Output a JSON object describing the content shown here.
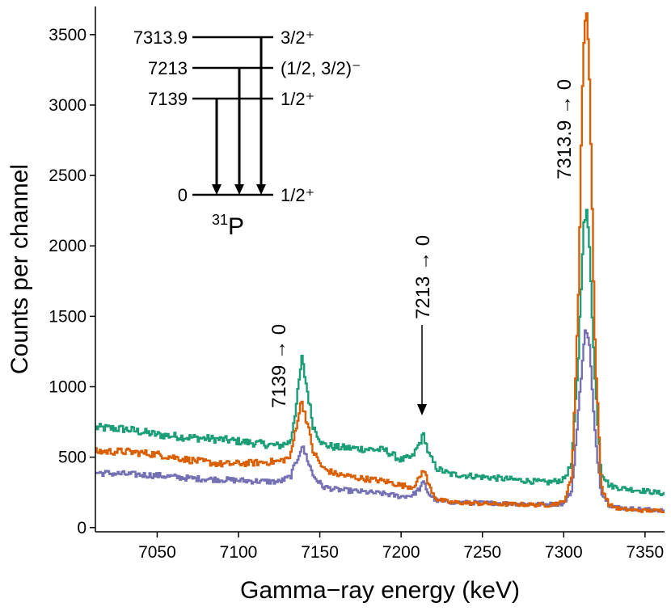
{
  "chart_data": {
    "type": "line",
    "title": "",
    "xlabel": "Gamma−ray energy (keV)",
    "ylabel": "Counts per channel",
    "xlim": [
      7012,
      7362
    ],
    "ylim": [
      -30,
      3700
    ],
    "xticks": [
      7050,
      7100,
      7150,
      7200,
      7250,
      7300,
      7350
    ],
    "yticks": [
      0,
      500,
      1000,
      1500,
      2000,
      2500,
      3000,
      3500
    ],
    "grid": false,
    "legend": "none",
    "series": [
      {
        "color": "#1b9e77",
        "x": [
          7012,
          7030,
          7050,
          7070,
          7090,
          7110,
          7125,
          7132,
          7136,
          7139,
          7142,
          7146,
          7152,
          7160,
          7175,
          7190,
          7200,
          7207,
          7211,
          7214,
          7217,
          7222,
          7230,
          7250,
          7270,
          7290,
          7300,
          7305,
          7309,
          7312,
          7314,
          7316,
          7319,
          7323,
          7328,
          7335,
          7350,
          7362
        ],
        "y": [
          710,
          700,
          660,
          640,
          625,
          600,
          580,
          610,
          900,
          1200,
          1000,
          720,
          590,
          570,
          560,
          550,
          480,
          500,
          590,
          660,
          520,
          420,
          380,
          360,
          340,
          320,
          340,
          450,
          1200,
          2100,
          2240,
          2000,
          1100,
          400,
          300,
          280,
          260,
          240
        ]
      },
      {
        "color": "#d95f02",
        "x": [
          7012,
          7030,
          7050,
          7070,
          7090,
          7110,
          7125,
          7132,
          7136,
          7139,
          7142,
          7146,
          7152,
          7160,
          7175,
          7190,
          7200,
          7207,
          7211,
          7214,
          7217,
          7222,
          7230,
          7250,
          7270,
          7290,
          7300,
          7305,
          7309,
          7312,
          7314,
          7316,
          7319,
          7323,
          7328,
          7335,
          7350,
          7362
        ],
        "y": [
          540,
          540,
          520,
          480,
          450,
          460,
          470,
          500,
          750,
          900,
          760,
          540,
          420,
          380,
          350,
          330,
          300,
          290,
          340,
          420,
          300,
          200,
          180,
          170,
          165,
          160,
          180,
          350,
          1600,
          3400,
          3700,
          3200,
          1400,
          300,
          160,
          130,
          120,
          120
        ]
      },
      {
        "color": "#7570b3",
        "x": [
          7012,
          7030,
          7050,
          7070,
          7090,
          7110,
          7125,
          7132,
          7136,
          7139,
          7142,
          7146,
          7152,
          7160,
          7175,
          7190,
          7200,
          7207,
          7211,
          7214,
          7217,
          7222,
          7230,
          7250,
          7270,
          7290,
          7300,
          7305,
          7309,
          7312,
          7314,
          7316,
          7319,
          7323,
          7328,
          7335,
          7350,
          7362
        ],
        "y": [
          390,
          380,
          370,
          350,
          340,
          330,
          325,
          360,
          480,
          580,
          500,
          370,
          290,
          270,
          255,
          240,
          220,
          230,
          270,
          320,
          240,
          190,
          180,
          175,
          170,
          165,
          170,
          260,
          800,
          1280,
          1420,
          1270,
          700,
          260,
          160,
          140,
          130,
          120
        ]
      }
    ],
    "level_scheme": {
      "nucleus": "P",
      "mass_number": "31",
      "levels": [
        {
          "energy": "7313.9",
          "spin": "3/2⁺"
        },
        {
          "energy": "7213",
          "spin": "(1/2, 3/2)⁻"
        },
        {
          "energy": "7139",
          "spin": "1/2⁺"
        },
        {
          "energy": "0",
          "spin": "1/2⁺"
        }
      ]
    },
    "annotations": [
      {
        "text": "7139 → 0",
        "x": 7139
      },
      {
        "text": "7213 → 0",
        "x": 7214
      },
      {
        "text": "7313.9 → 0",
        "x": 7313
      }
    ]
  }
}
